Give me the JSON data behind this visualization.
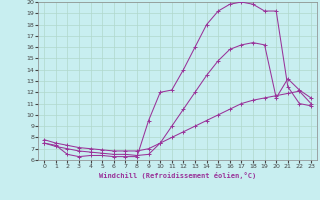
{
  "background_color": "#c8eef0",
  "grid_color": "#b0d8cc",
  "line_color": "#993399",
  "xlabel": "Windchill (Refroidissement éolien,°C)",
  "xlim": [
    -0.5,
    23.5
  ],
  "ylim": [
    6,
    20
  ],
  "xticks": [
    0,
    1,
    2,
    3,
    4,
    5,
    6,
    7,
    8,
    9,
    10,
    11,
    12,
    13,
    14,
    15,
    16,
    17,
    18,
    19,
    20,
    21,
    22,
    23
  ],
  "yticks": [
    6,
    7,
    8,
    9,
    10,
    11,
    12,
    13,
    14,
    15,
    16,
    17,
    18,
    19,
    20
  ],
  "curve1_x": [
    0,
    1,
    2,
    3,
    4,
    5,
    6,
    7,
    8,
    9,
    10,
    11,
    12,
    13,
    14,
    15,
    16,
    17,
    18,
    19,
    20,
    21,
    22,
    23
  ],
  "curve1_y": [
    7.5,
    7.3,
    6.5,
    6.3,
    6.4,
    6.4,
    6.3,
    6.3,
    6.3,
    9.5,
    12.0,
    12.2,
    14.0,
    16.0,
    18.0,
    19.2,
    19.8,
    20.0,
    19.8,
    19.2,
    19.2,
    12.5,
    11.0,
    10.8
  ],
  "curve2_x": [
    0,
    1,
    2,
    3,
    4,
    5,
    6,
    7,
    8,
    9,
    10,
    11,
    12,
    13,
    14,
    15,
    16,
    17,
    18,
    19,
    20,
    21,
    22,
    23
  ],
  "curve2_y": [
    7.5,
    7.2,
    7.0,
    6.8,
    6.7,
    6.6,
    6.5,
    6.5,
    6.4,
    6.5,
    7.5,
    9.0,
    10.5,
    12.0,
    13.5,
    14.8,
    15.8,
    16.2,
    16.4,
    16.2,
    11.5,
    13.2,
    12.2,
    11.5
  ],
  "curve3_x": [
    0,
    1,
    2,
    3,
    4,
    5,
    6,
    7,
    8,
    9,
    10,
    11,
    12,
    13,
    14,
    15,
    16,
    17,
    18,
    19,
    20,
    21,
    22,
    23
  ],
  "curve3_y": [
    7.8,
    7.5,
    7.3,
    7.1,
    7.0,
    6.9,
    6.8,
    6.8,
    6.8,
    7.0,
    7.5,
    8.0,
    8.5,
    9.0,
    9.5,
    10.0,
    10.5,
    11.0,
    11.3,
    11.5,
    11.7,
    11.9,
    12.1,
    11.0
  ]
}
